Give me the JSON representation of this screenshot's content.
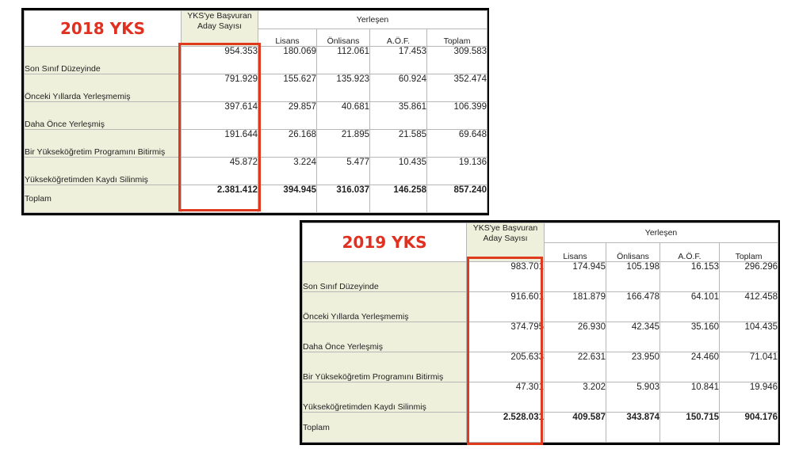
{
  "tables": [
    {
      "title": "2018 YKS",
      "col_aday": "YKS'ye Başvuran Aday Sayısı",
      "col_group": "Yerleşen",
      "cols": [
        "Lisans",
        "Önlisans",
        "A.Ö.F.",
        "Toplam"
      ],
      "rows": [
        {
          "label": "Son Sınıf Düzeyinde",
          "aday": "954.353",
          "vals": [
            "180.069",
            "112.061",
            "17.453",
            "309.583"
          ]
        },
        {
          "label": "Önceki Yıllarda Yerleşmemiş",
          "aday": "791.929",
          "vals": [
            "155.627",
            "135.923",
            "60.924",
            "352.474"
          ]
        },
        {
          "label": "Daha Önce Yerleşmiş",
          "aday": "397.614",
          "vals": [
            "29.857",
            "40.681",
            "35.861",
            "106.399"
          ]
        },
        {
          "label": "Bir Yükseköğretim Programını Bitirmiş",
          "aday": "191.644",
          "vals": [
            "26.168",
            "21.895",
            "21.585",
            "69.648"
          ]
        },
        {
          "label": "Yükseköğretimden Kaydı Silinmiş",
          "aday": "45.872",
          "vals": [
            "3.224",
            "5.477",
            "10.435",
            "19.136"
          ]
        }
      ],
      "total": {
        "label": "Toplam",
        "aday": "2.381.412",
        "vals": [
          "394.945",
          "316.037",
          "146.258",
          "857.240"
        ]
      }
    },
    {
      "title": "2019 YKS",
      "col_aday": "YKS'ye Başvuran Aday Sayısı",
      "col_group": "Yerleşen",
      "cols": [
        "Lisans",
        "Önlisans",
        "A.Ö.F.",
        "Toplam"
      ],
      "rows": [
        {
          "label": "Son Sınıf Düzeyinde",
          "aday": "983.701",
          "vals": [
            "174.945",
            "105.198",
            "16.153",
            "296.296"
          ]
        },
        {
          "label": "Önceki Yıllarda Yerleşmemiş",
          "aday": "916.601",
          "vals": [
            "181.879",
            "166.478",
            "64.101",
            "412.458"
          ]
        },
        {
          "label": "Daha Önce Yerleşmiş",
          "aday": "374.795",
          "vals": [
            "26.930",
            "42.345",
            "35.160",
            "104.435"
          ]
        },
        {
          "label": "Bir Yükseköğretim Programını Bitirmiş",
          "aday": "205.633",
          "vals": [
            "22.631",
            "23.950",
            "24.460",
            "71.041"
          ]
        },
        {
          "label": "Yükseköğretimden Kaydı Silinmiş",
          "aday": "47.301",
          "vals": [
            "3.202",
            "5.903",
            "10.841",
            "19.946"
          ]
        }
      ],
      "total": {
        "label": "Toplam",
        "aday": "2.528.031",
        "vals": [
          "409.587",
          "343.874",
          "150.715",
          "904.176"
        ]
      }
    }
  ]
}
